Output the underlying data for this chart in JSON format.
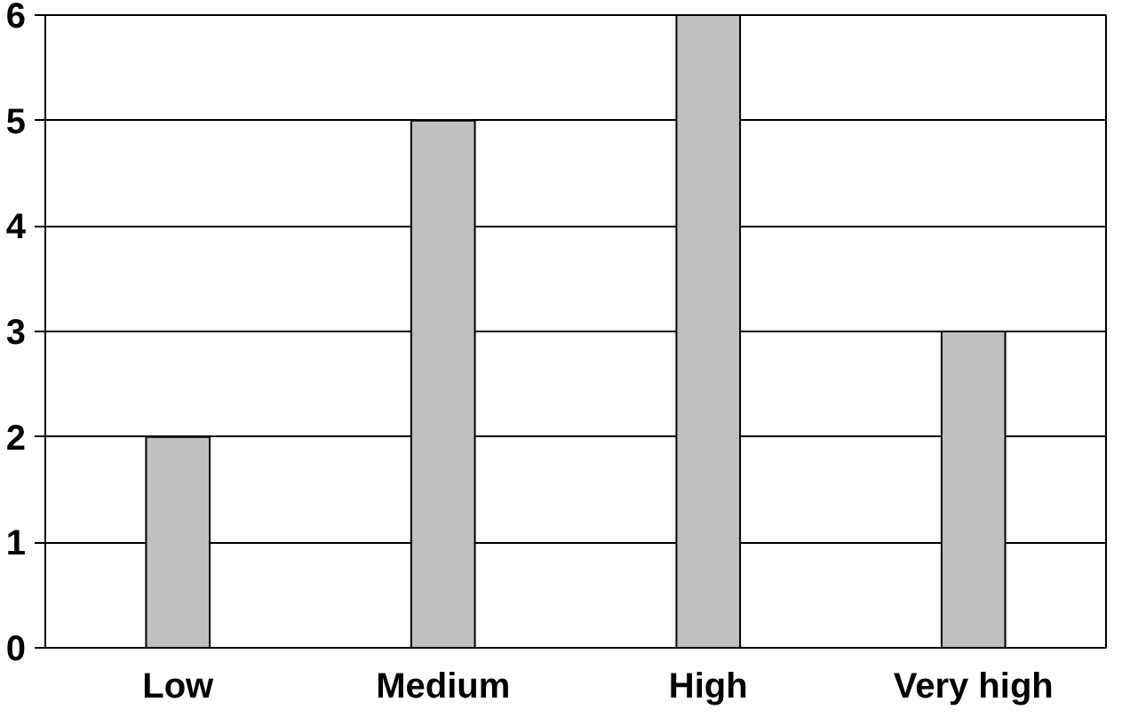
{
  "chart_data": {
    "type": "bar",
    "categories": [
      "Low",
      "Medium",
      "High",
      "Very high"
    ],
    "values": [
      2,
      5,
      6,
      3
    ],
    "color": "#c0c0c0",
    "ylim": [
      0,
      6
    ],
    "yticks": [
      0,
      1,
      2,
      3,
      4,
      5,
      6
    ],
    "grid": "y"
  }
}
